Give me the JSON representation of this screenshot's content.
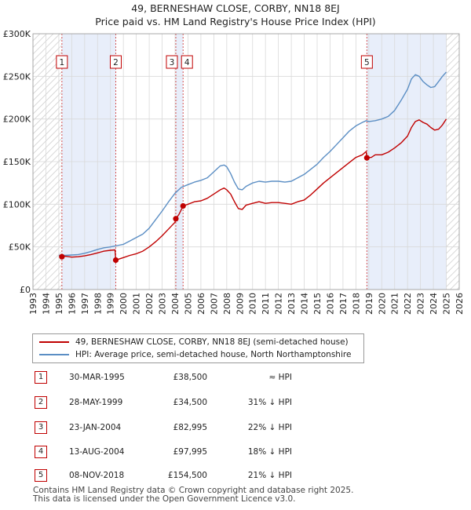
{
  "chart_data": {
    "type": "line",
    "title": "49, BERNESHAW CLOSE, CORBY, NN18 8EJ",
    "subtitle": "Price paid vs. HM Land Registry's House Price Index (HPI)",
    "xlim": [
      1993,
      2026
    ],
    "ylim": [
      0,
      300000
    ],
    "x_ticks": [
      "1993",
      "1994",
      "1995",
      "1996",
      "1997",
      "1998",
      "1999",
      "2000",
      "2001",
      "2002",
      "2003",
      "2004",
      "2005",
      "2006",
      "2007",
      "2008",
      "2009",
      "2010",
      "2011",
      "2012",
      "2013",
      "2014",
      "2015",
      "2016",
      "2017",
      "2018",
      "2019",
      "2020",
      "2021",
      "2022",
      "2023",
      "2024",
      "2025",
      "2026"
    ],
    "y_ticks": [
      {
        "value": 0,
        "label": "£0"
      },
      {
        "value": 50000,
        "label": "£50K"
      },
      {
        "value": 100000,
        "label": "£100K"
      },
      {
        "value": 150000,
        "label": "£150K"
      },
      {
        "value": 200000,
        "label": "£200K"
      },
      {
        "value": 250000,
        "label": "£250K"
      },
      {
        "value": 300000,
        "label": "£300K"
      }
    ],
    "grid": true,
    "hatched_ranges": [
      [
        1993,
        1995.24
      ],
      [
        2025.0,
        2026
      ]
    ],
    "shaded_ranges": [
      [
        1995.24,
        1999.41
      ],
      [
        2004.06,
        2004.62
      ],
      [
        2018.85,
        2025.0
      ]
    ],
    "series": [
      {
        "name": "49, BERNESHAW CLOSE, CORBY, NN18 8EJ (semi-detached house)",
        "color": "#c00000",
        "x": [
          1995.24,
          1995.5,
          1996,
          1996.5,
          1997,
          1997.5,
          1998,
          1998.5,
          1999.0,
          1999.35,
          1999.41,
          1999.7,
          2000,
          2000.5,
          2001,
          2001.5,
          2002,
          2002.5,
          2003,
          2003.5,
          2004.0,
          2004.06,
          2004.3,
          2004.62,
          2005,
          2005.5,
          2006,
          2006.5,
          2007,
          2007.5,
          2007.8,
          2008,
          2008.3,
          2008.6,
          2008.9,
          2009.2,
          2009.5,
          2010,
          2010.5,
          2011,
          2011.5,
          2012,
          2012.5,
          2013,
          2013.5,
          2014,
          2014.5,
          2015,
          2015.5,
          2016,
          2016.5,
          2017,
          2017.5,
          2018,
          2018.5,
          2018.8,
          2018.85,
          2019.2,
          2019.5,
          2020,
          2020.5,
          2021,
          2021.5,
          2022,
          2022.3,
          2022.6,
          2022.9,
          2023.2,
          2023.5,
          2023.8,
          2024.1,
          2024.4,
          2024.7,
          2025.0
        ],
        "y": [
          38500,
          39000,
          38000,
          38500,
          39500,
          41000,
          43000,
          45000,
          46000,
          46500,
          34500,
          36000,
          37500,
          40000,
          42000,
          45000,
          50000,
          56000,
          63000,
          71000,
          79000,
          82995,
          88000,
          97995,
          100000,
          103000,
          104000,
          107000,
          112000,
          117000,
          119000,
          117000,
          112000,
          103000,
          95000,
          94000,
          99000,
          101000,
          103000,
          101000,
          102000,
          102000,
          101000,
          100000,
          103000,
          105000,
          111000,
          118000,
          125000,
          131000,
          137000,
          143000,
          149000,
          155000,
          158000,
          162000,
          154500,
          155000,
          158000,
          158000,
          161000,
          166000,
          172000,
          180000,
          190000,
          197000,
          199000,
          196000,
          194000,
          190000,
          187000,
          188000,
          193000,
          200000
        ]
      },
      {
        "name": "HPI: Average price, semi-detached house, North Northamptonshire",
        "color": "#5b8ec4",
        "x": [
          1995,
          1995.5,
          1996,
          1996.5,
          1997,
          1997.5,
          1998,
          1998.5,
          1999,
          1999.5,
          2000,
          2000.5,
          2001,
          2001.5,
          2002,
          2002.5,
          2003,
          2003.5,
          2004,
          2004.5,
          2005,
          2005.5,
          2006,
          2006.5,
          2007,
          2007.5,
          2007.8,
          2008,
          2008.3,
          2008.6,
          2008.9,
          2009.2,
          2009.5,
          2010,
          2010.5,
          2011,
          2011.5,
          2012,
          2012.5,
          2013,
          2013.5,
          2014,
          2014.5,
          2015,
          2015.5,
          2016,
          2016.5,
          2017,
          2017.5,
          2018,
          2018.5,
          2018.8,
          2019,
          2019.5,
          2020,
          2020.5,
          2021,
          2021.5,
          2022,
          2022.3,
          2022.6,
          2022.9,
          2023.2,
          2023.5,
          2023.8,
          2024.1,
          2024.4,
          2024.7,
          2025.0
        ],
        "y": [
          40000,
          40000,
          40500,
          41000,
          42500,
          44500,
          47000,
          49000,
          50000,
          51500,
          53000,
          57000,
          61000,
          65000,
          72000,
          82000,
          92000,
          103000,
          113000,
          120000,
          123000,
          126000,
          128000,
          131000,
          138000,
          145000,
          146000,
          144000,
          136000,
          126000,
          118000,
          117000,
          121000,
          125000,
          127000,
          126000,
          127000,
          127000,
          126000,
          127000,
          131000,
          135000,
          141000,
          147000,
          155000,
          162000,
          170000,
          178000,
          186000,
          192000,
          196000,
          198000,
          197000,
          198000,
          200000,
          203000,
          210000,
          222000,
          235000,
          247000,
          252000,
          250000,
          244000,
          240000,
          237000,
          238000,
          244000,
          250000,
          255000
        ]
      }
    ],
    "sales": [
      {
        "num": "1",
        "x": 1995.24,
        "y": 38500
      },
      {
        "num": "2",
        "x": 1999.41,
        "y": 34500
      },
      {
        "num": "3",
        "x": 2004.06,
        "y": 82995
      },
      {
        "num": "4",
        "x": 2004.62,
        "y": 97995
      },
      {
        "num": "5",
        "x": 2018.85,
        "y": 154500
      }
    ]
  },
  "legend": {
    "property_label": "49, BERNESHAW CLOSE, CORBY, NN18 8EJ (semi-detached house)",
    "hpi_label": "HPI: Average price, semi-detached house, North Northamptonshire"
  },
  "sales_table": [
    {
      "num": "1",
      "date": "30-MAR-1995",
      "price": "£38,500",
      "hpi": "≈ HPI"
    },
    {
      "num": "2",
      "date": "28-MAY-1999",
      "price": "£34,500",
      "hpi": "31% ↓ HPI"
    },
    {
      "num": "3",
      "date": "23-JAN-2004",
      "price": "£82,995",
      "hpi": "22% ↓ HPI"
    },
    {
      "num": "4",
      "date": "13-AUG-2004",
      "price": "£97,995",
      "hpi": "18% ↓ HPI"
    },
    {
      "num": "5",
      "date": "08-NOV-2018",
      "price": "£154,500",
      "hpi": "21% ↓ HPI"
    }
  ],
  "footer": {
    "line1": "Contains HM Land Registry data © Crown copyright and database right 2025.",
    "line2": "This data is licensed under the Open Government Licence v3.0."
  },
  "colors": {
    "property": "#c00000",
    "hpi": "#5b8ec4",
    "shade": "#e8eefa",
    "grid": "#d9d9d9"
  }
}
